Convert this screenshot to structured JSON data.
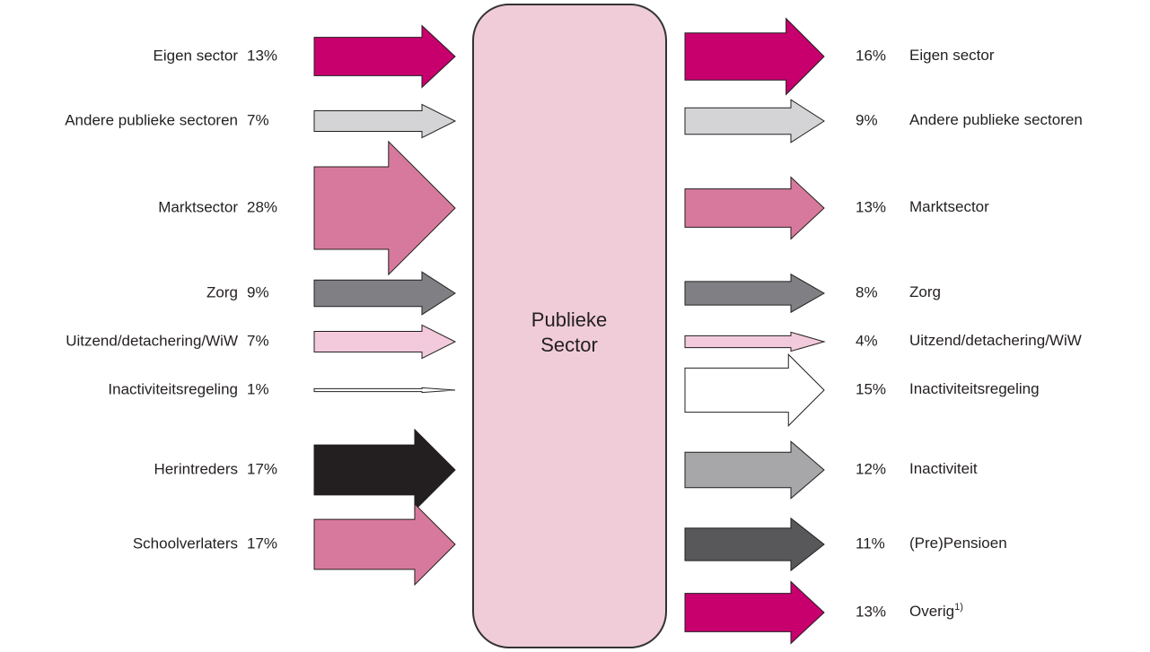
{
  "center": {
    "lines": [
      "Publieke",
      "Sector"
    ]
  },
  "inflows": [
    {
      "label": "Eigen sector",
      "value": 13,
      "value_label": "13%",
      "color": "#c8006e"
    },
    {
      "label": "Andere publieke sectoren",
      "value": 7,
      "value_label": "7%",
      "color": "#d4d4d6"
    },
    {
      "label": "Marktsector",
      "value": 28,
      "value_label": "28%",
      "color": "#d7799d"
    },
    {
      "label": "Zorg",
      "value": 9,
      "value_label": "9%",
      "color": "#808084"
    },
    {
      "label": "Uitzend/detachering/WiW",
      "value": 7,
      "value_label": "7%",
      "color": "#f2cadb"
    },
    {
      "label": "Inactiviteitsregeling",
      "value": 1,
      "value_label": "1%",
      "color": "#ffffff"
    },
    {
      "label": "Herintreders",
      "value": 17,
      "value_label": "17%",
      "color": "#231f20"
    },
    {
      "label": "Schoolverlaters",
      "value": 17,
      "value_label": "17%",
      "color": "#d7799d"
    }
  ],
  "outflows": [
    {
      "label": "Eigen sector",
      "value": 16,
      "value_label": "16%",
      "color": "#c8006e"
    },
    {
      "label": "Andere publieke sectoren",
      "value": 9,
      "value_label": "9%",
      "color": "#d4d4d6"
    },
    {
      "label": "Marktsector",
      "value": 13,
      "value_label": "13%",
      "color": "#d7799d"
    },
    {
      "label": "Zorg",
      "value": 8,
      "value_label": "8%",
      "color": "#808084"
    },
    {
      "label": "Uitzend/detachering/WiW",
      "value": 4,
      "value_label": "4%",
      "color": "#f2cadb"
    },
    {
      "label": "Inactiviteitsregeling",
      "value": 15,
      "value_label": "15%",
      "color": "#ffffff"
    },
    {
      "label": "Inactiviteit",
      "value": 12,
      "value_label": "12%",
      "color": "#a7a7aa"
    },
    {
      "label": "(Pre)Pensioen",
      "value": 11,
      "value_label": "11%",
      "color": "#58585a"
    },
    {
      "label": "Overig",
      "value": 13,
      "value_label": "13%",
      "color": "#c8006e",
      "note_marker": "1)"
    }
  ]
}
